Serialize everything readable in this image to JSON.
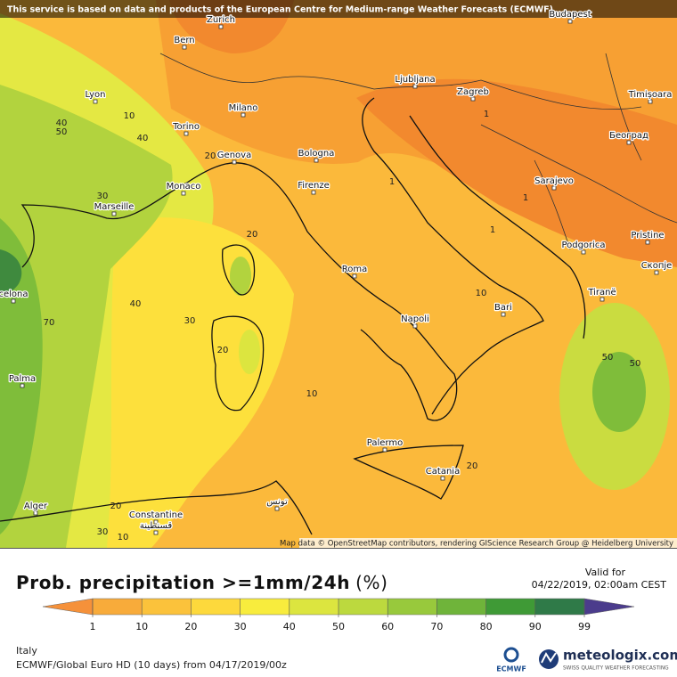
{
  "header": {
    "notice": "This service is based on data and products of the European Centre for Medium-range Weather Forecasts (ECMWF)"
  },
  "map": {
    "cities": [
      "Zurich",
      "Bern",
      "Lyon",
      "Torino",
      "Milano",
      "Genova",
      "Bologna",
      "Firenze",
      "Monaco",
      "Marseille",
      "Roma",
      "Napoli",
      "Bari",
      "Palermo",
      "Catania",
      "Ljubljana",
      "Zagreb",
      "Budapest",
      "Timișoara",
      "Београд",
      "Sarajevo",
      "Podgorica",
      "Pristine",
      "Скопје",
      "Tiranë",
      "celona",
      "Palma",
      "Alger",
      "Constantine",
      "قسنطينة",
      "تونس"
    ],
    "contour_labels": [
      "40",
      "50",
      "10",
      "40",
      "30",
      "20",
      "1",
      "1",
      "20",
      "40",
      "70",
      "30",
      "20",
      "10",
      "10",
      "50",
      "50",
      "20",
      "20",
      "30",
      "10",
      "1",
      "1"
    ],
    "attribution": "Map data © OpenStreetMap contributors, rendering GIScience Research Group @ Heidelberg University"
  },
  "footer": {
    "title": "Prob. precipitation >=1mm/24h",
    "unit": "(%)",
    "valid_label": "Valid for",
    "valid_time": "04/22/2019, 02:00am CEST",
    "region": "Italy",
    "model": "ECMWF/Global Euro HD (10 days) from 04/17/2019/00z",
    "brand": "meteologix.com",
    "tagline": "SWISS QUALITY WEATHER FORECASTING",
    "ecmwf": "ECMWF"
  },
  "legend": {
    "ticks": [
      1,
      10,
      20,
      30,
      40,
      50,
      60,
      70,
      80,
      90,
      99
    ],
    "colors": [
      "#f8ab3a",
      "#fbc23b",
      "#fdd93c",
      "#f8ec3d",
      "#dce53f",
      "#bcd93e",
      "#98c93c",
      "#6fb43a",
      "#3f9a36",
      "#2f7a48",
      "#365a5e"
    ],
    "under_color": "#f5913a",
    "over_color": "#4b3c8c"
  }
}
